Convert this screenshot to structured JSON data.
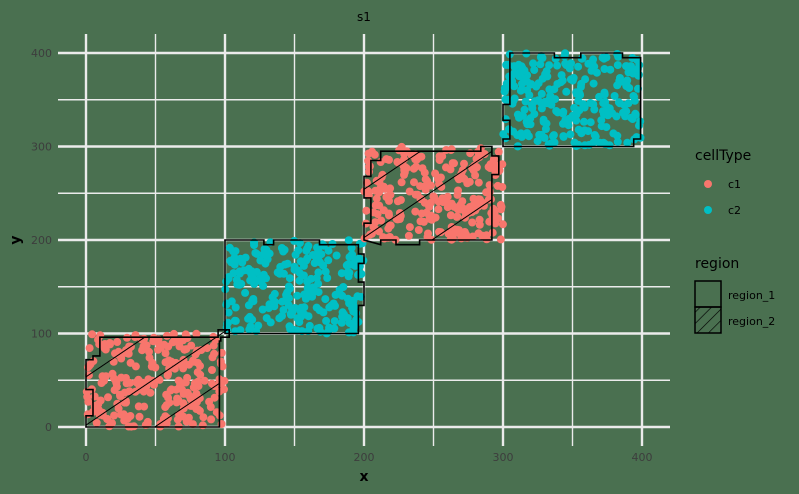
{
  "chart_data": {
    "type": "scatter",
    "title": "s1",
    "xlabel": "x",
    "ylabel": "y",
    "xlim": [
      -20,
      420
    ],
    "ylim": [
      -10,
      410
    ],
    "xticks": [
      0,
      100,
      200,
      300,
      400
    ],
    "yticks": [
      0,
      100,
      200,
      300,
      400
    ],
    "grid": true,
    "legend_position": "right",
    "legends": [
      {
        "title": "cellType",
        "entries": [
          {
            "label": "c1",
            "color": "#f8766d"
          },
          {
            "label": "c2",
            "color": "#00bfc4"
          }
        ]
      },
      {
        "title": "region",
        "entries": [
          {
            "label": "region_1",
            "pattern": "none"
          },
          {
            "label": "region_2",
            "pattern": "stripe"
          }
        ]
      }
    ],
    "clusters": [
      {
        "cellType": "c1",
        "region": "region_2",
        "x_range": [
          0,
          100
        ],
        "y_range": [
          0,
          100
        ],
        "n_points": 250
      },
      {
        "cellType": "c2",
        "region": "region_1",
        "x_range": [
          100,
          200
        ],
        "y_range": [
          100,
          200
        ],
        "n_points": 250
      },
      {
        "cellType": "c1",
        "region": "region_2",
        "x_range": [
          200,
          300
        ],
        "y_range": [
          200,
          300
        ],
        "n_points": 250
      },
      {
        "cellType": "c2",
        "region": "region_1",
        "x_range": [
          300,
          400
        ],
        "y_range": [
          300,
          400
        ],
        "n_points": 250
      }
    ],
    "region_outlines": [
      {
        "region": "region_2",
        "points": [
          [
            0,
            0
          ],
          [
            0,
            12
          ],
          [
            5,
            12
          ],
          [
            5,
            40
          ],
          [
            0,
            40
          ],
          [
            0,
            72
          ],
          [
            5,
            72
          ],
          [
            5,
            76
          ],
          [
            10,
            76
          ],
          [
            10,
            96
          ],
          [
            95,
            96
          ],
          [
            95,
            104
          ],
          [
            103,
            104
          ],
          [
            103,
            96
          ],
          [
            97,
            96
          ],
          [
            97,
            92
          ],
          [
            96,
            92
          ],
          [
            96,
            0
          ]
        ]
      },
      {
        "region": "region_1",
        "points": [
          [
            100,
            100
          ],
          [
            100,
            200
          ],
          [
            128,
            200
          ],
          [
            128,
            195
          ],
          [
            135,
            195
          ],
          [
            135,
            200
          ],
          [
            168,
            200
          ],
          [
            168,
            195
          ],
          [
            196,
            195
          ],
          [
            196,
            185
          ],
          [
            200,
            185
          ],
          [
            200,
            175
          ],
          [
            196,
            175
          ],
          [
            196,
            155
          ],
          [
            200,
            155
          ],
          [
            200,
            130
          ],
          [
            196,
            130
          ],
          [
            196,
            100
          ]
        ]
      },
      {
        "region": "region_2",
        "points": [
          [
            200,
            200
          ],
          [
            200,
            218
          ],
          [
            205,
            218
          ],
          [
            205,
            245
          ],
          [
            200,
            245
          ],
          [
            200,
            268
          ],
          [
            205,
            268
          ],
          [
            205,
            285
          ],
          [
            212,
            285
          ],
          [
            212,
            295
          ],
          [
            284,
            295
          ],
          [
            284,
            300
          ],
          [
            292,
            300
          ],
          [
            292,
            290
          ],
          [
            297,
            290
          ],
          [
            297,
            270
          ],
          [
            292,
            270
          ],
          [
            292,
            200
          ],
          [
            240,
            200
          ],
          [
            240,
            195
          ],
          [
            223,
            195
          ],
          [
            223,
            200
          ],
          [
            212,
            200
          ],
          [
            212,
            195
          ]
        ]
      },
      {
        "region": "region_1",
        "points": [
          [
            300,
            300
          ],
          [
            300,
            308
          ],
          [
            305,
            308
          ],
          [
            305,
            328
          ],
          [
            300,
            328
          ],
          [
            300,
            345
          ],
          [
            305,
            345
          ],
          [
            305,
            400
          ],
          [
            337,
            400
          ],
          [
            337,
            395
          ],
          [
            356,
            395
          ],
          [
            356,
            400
          ],
          [
            386,
            400
          ],
          [
            386,
            395
          ],
          [
            399,
            395
          ],
          [
            399,
            308
          ],
          [
            394,
            308
          ],
          [
            394,
            300
          ]
        ]
      }
    ]
  },
  "colors": {
    "background": "#4a7050",
    "grid": "#ebebeb",
    "c1": "#f8766d",
    "c2": "#00bfc4",
    "outline": "#000000"
  }
}
